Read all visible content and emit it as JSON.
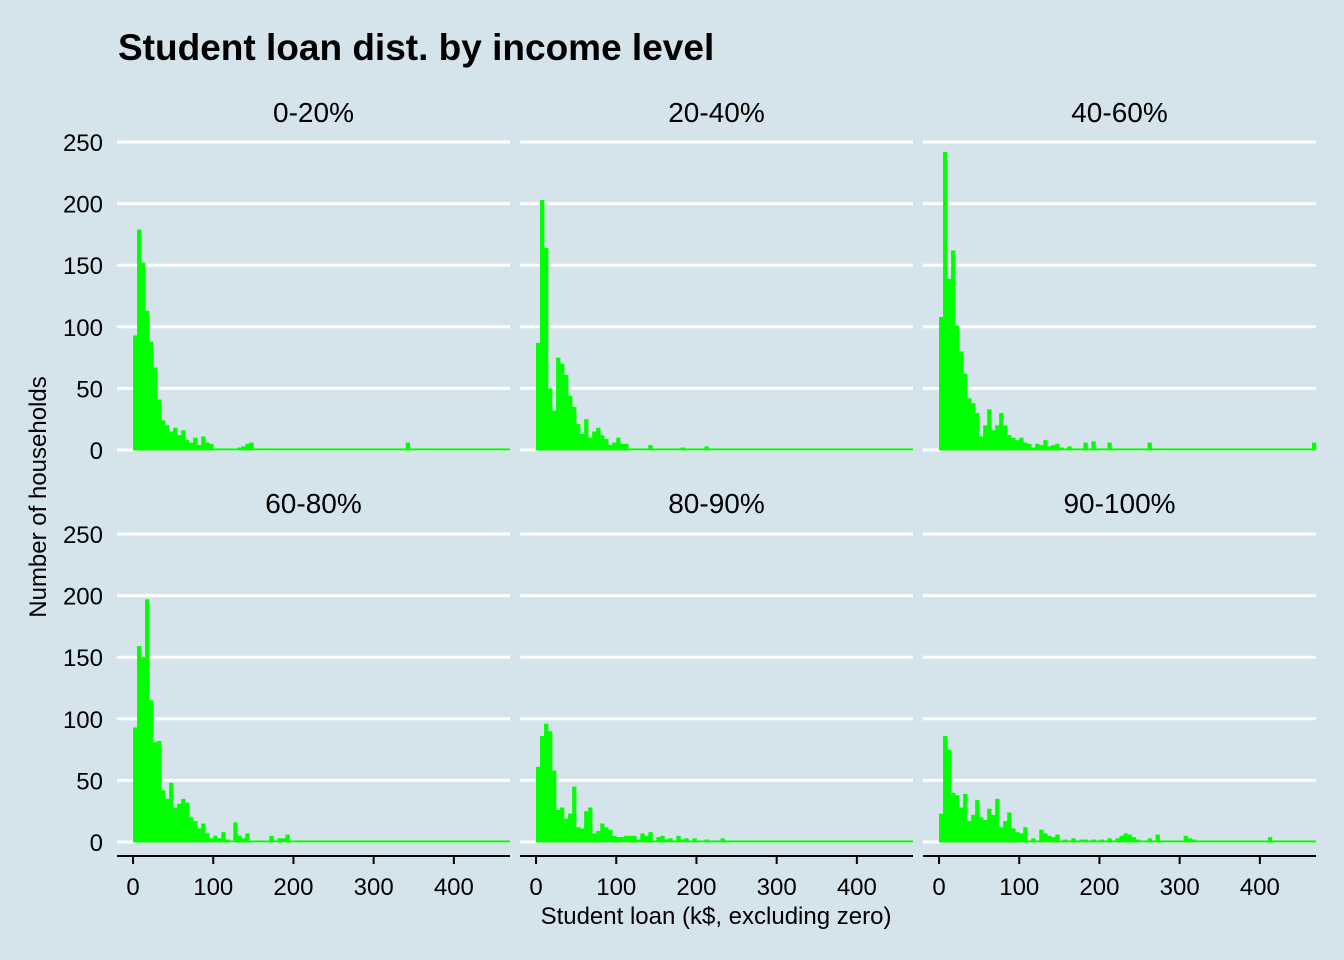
{
  "chart_data": {
    "type": "bar",
    "title": "Student loan dist. by income level",
    "xlabel": "Student loan (k$, excluding zero)",
    "ylabel": "Number of households",
    "xlim": [
      -20,
      470
    ],
    "ylim": [
      0,
      250
    ],
    "x_ticks": [
      0,
      100,
      200,
      300,
      400
    ],
    "y_ticks": [
      0,
      50,
      100,
      150,
      200,
      250
    ],
    "bin_width": 5,
    "bin_start": 0,
    "bar_color": "#00ff00",
    "background_color": "#d5e4eb",
    "grid_color": "#ffffff",
    "panels": [
      {
        "label": "0-20%",
        "values": [
          93,
          179,
          152,
          113,
          88,
          67,
          41,
          24,
          20,
          15,
          18,
          12,
          16,
          8,
          6,
          10,
          4,
          11,
          6,
          5,
          1,
          1,
          0,
          0,
          0,
          0,
          2,
          3,
          5,
          6,
          1,
          0,
          0,
          0,
          0,
          0,
          0,
          0,
          0,
          0,
          0,
          0,
          0,
          0,
          0,
          0,
          0,
          0,
          0,
          0,
          0,
          0,
          0,
          0,
          0,
          0,
          0,
          0,
          0,
          0,
          0,
          0,
          0,
          0,
          0,
          0,
          0,
          0,
          6,
          0,
          0,
          0,
          0,
          0,
          0,
          0,
          0,
          0,
          0,
          0,
          0,
          0,
          0,
          0,
          0,
          0,
          0,
          0,
          0,
          0,
          0,
          0,
          0,
          0
        ]
      },
      {
        "label": "20-40%",
        "values": [
          87,
          203,
          164,
          50,
          32,
          75,
          70,
          61,
          44,
          35,
          21,
          13,
          25,
          10,
          15,
          18,
          12,
          9,
          4,
          6,
          10,
          5,
          5,
          1,
          0,
          0,
          0,
          1,
          4,
          0,
          0,
          0,
          0,
          1,
          0,
          0,
          2,
          0,
          0,
          0,
          0,
          0,
          3,
          0,
          0,
          0,
          0,
          0,
          0,
          0,
          0,
          0,
          0,
          0,
          0,
          0,
          0,
          0,
          0,
          0,
          0,
          0,
          0,
          0,
          0,
          0,
          0,
          0,
          0,
          0,
          0,
          0,
          0,
          0,
          0,
          0,
          0,
          0,
          0,
          0,
          0,
          0,
          0,
          0,
          0,
          0,
          0,
          0,
          0,
          0,
          0,
          0,
          0,
          0
        ]
      },
      {
        "label": "40-60%",
        "values": [
          108,
          242,
          139,
          162,
          101,
          80,
          62,
          42,
          38,
          30,
          11,
          20,
          33,
          16,
          20,
          30,
          20,
          12,
          10,
          8,
          10,
          6,
          5,
          2,
          5,
          4,
          8,
          3,
          4,
          5,
          2,
          1,
          3,
          1,
          0,
          0,
          6,
          1,
          7,
          0,
          0,
          1,
          6,
          0,
          0,
          0,
          0,
          0,
          0,
          0,
          0,
          0,
          6,
          0,
          0,
          0,
          0,
          0,
          0,
          0,
          0,
          0,
          0,
          0,
          0,
          0,
          0,
          0,
          0,
          0,
          0,
          0,
          0,
          0,
          0,
          0,
          0,
          0,
          0,
          0,
          0,
          0,
          0,
          0,
          0,
          0,
          0,
          0,
          0,
          0,
          0,
          0,
          0,
          6
        ]
      },
      {
        "label": "60-80%",
        "values": [
          93,
          159,
          150,
          197,
          115,
          81,
          82,
          42,
          35,
          48,
          28,
          31,
          35,
          32,
          20,
          17,
          11,
          15,
          7,
          3,
          5,
          3,
          8,
          2,
          1,
          16,
          5,
          3,
          7,
          0,
          0,
          0,
          0,
          0,
          5,
          1,
          3,
          3,
          6,
          0,
          0,
          1,
          0,
          1,
          0,
          0,
          0,
          0,
          0,
          0,
          0,
          0,
          0,
          0,
          0,
          0,
          1,
          0,
          0,
          0,
          0,
          0,
          0,
          0,
          0,
          0,
          0,
          0,
          0,
          0,
          0,
          0,
          0,
          0,
          1,
          1,
          1,
          0,
          0,
          0,
          0,
          0,
          0,
          0,
          0,
          0,
          0,
          0,
          0,
          0,
          0,
          0,
          0,
          0
        ]
      },
      {
        "label": "80-90%",
        "values": [
          61,
          86,
          96,
          90,
          58,
          26,
          28,
          19,
          23,
          45,
          12,
          11,
          25,
          28,
          7,
          9,
          15,
          12,
          10,
          5,
          4,
          4,
          5,
          5,
          5,
          2,
          7,
          5,
          8,
          0,
          4,
          5,
          2,
          3,
          0,
          5,
          2,
          3,
          0,
          3,
          0,
          0,
          2,
          0,
          0,
          0,
          3,
          0,
          0,
          0,
          0,
          0,
          0,
          0,
          0,
          0,
          0,
          0,
          0,
          1,
          0,
          0,
          0,
          0,
          0,
          0,
          0,
          0,
          0,
          0,
          0,
          0,
          0,
          0,
          0,
          0,
          0,
          0,
          1,
          0,
          0,
          0,
          0,
          0,
          0,
          0,
          0,
          0,
          0,
          0,
          0,
          0,
          0,
          0
        ]
      },
      {
        "label": "90-100%",
        "values": [
          23,
          86,
          75,
          40,
          38,
          28,
          39,
          17,
          22,
          34,
          20,
          18,
          27,
          22,
          35,
          12,
          17,
          24,
          11,
          8,
          7,
          12,
          1,
          3,
          1,
          10,
          7,
          5,
          4,
          6,
          1,
          2,
          0,
          3,
          0,
          2,
          2,
          1,
          2,
          0,
          2,
          0,
          3,
          1,
          3,
          5,
          7,
          6,
          4,
          2,
          1,
          0,
          3,
          0,
          6,
          1,
          1,
          0,
          0,
          0,
          0,
          5,
          3,
          2,
          0,
          1,
          1,
          0,
          0,
          0,
          0,
          0,
          0,
          0,
          0,
          0,
          0,
          0,
          0,
          0,
          0,
          0,
          4,
          0,
          0,
          0,
          0,
          0,
          0,
          0,
          0,
          0,
          0,
          0
        ]
      }
    ]
  }
}
